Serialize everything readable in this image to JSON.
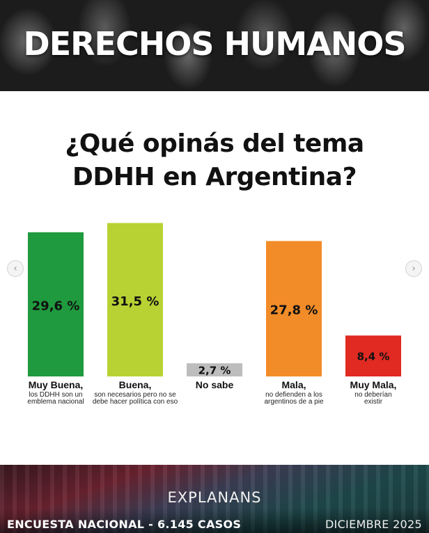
{
  "header": {
    "title": "DERECHOS HUMANOS"
  },
  "question": {
    "line1": "¿Qué opinás del tema",
    "line2": "DDHH en Argentina?"
  },
  "carousel": {
    "prev_icon": "chevron-left-icon",
    "next_icon": "chevron-right-icon"
  },
  "chart_data": {
    "type": "bar",
    "title": "¿Qué opinás del tema DDHH en Argentina?",
    "xlabel": "",
    "ylabel": "",
    "ylim": [
      0,
      32
    ],
    "categories": [
      "Muy Buena,",
      "Buena,",
      "No sabe",
      "Mala,",
      "Muy Mala,"
    ],
    "sublabels": [
      [
        "los DDHH son un",
        "emblema nacional"
      ],
      [
        "son necesarios pero no se",
        "debe hacer política con eso"
      ],
      [],
      [
        "no defienden a los",
        "argentinos de a pie"
      ],
      [
        "no deberían",
        "existir"
      ]
    ],
    "values": [
      29.6,
      31.5,
      2.7,
      27.8,
      8.4
    ],
    "value_labels": [
      "29,6 %",
      "31,5 %",
      "2,7 %",
      "27,8 %",
      "8,4 %"
    ],
    "colors": [
      "#1f9a3e",
      "#b8d233",
      "#bdbdbd",
      "#f28c28",
      "#e02a22"
    ]
  },
  "footer": {
    "brand": "EXPLANANS",
    "survey": "ENCUESTA NACIONAL - 6.145 CASOS",
    "date": "DICIEMBRE 2025"
  }
}
